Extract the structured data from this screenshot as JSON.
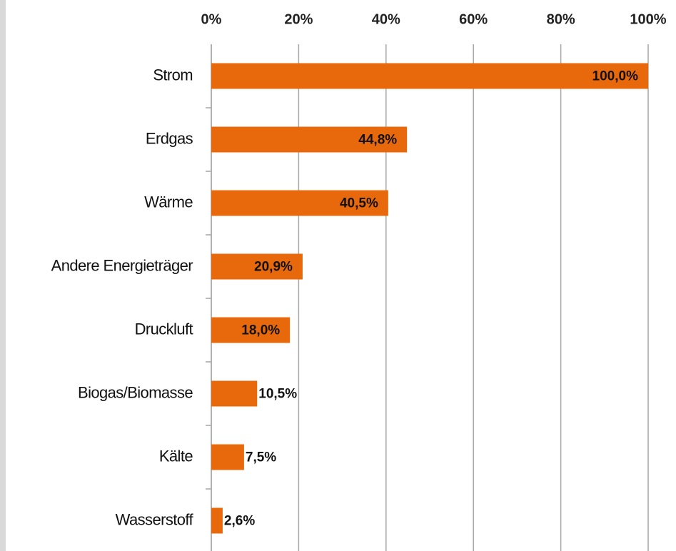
{
  "chart_data": {
    "type": "bar",
    "orientation": "horizontal",
    "color": "#e8690b",
    "categories": [
      "Strom",
      "Erdgas",
      "Wärme",
      "Andere Energieträger",
      "Druckluft",
      "Biogas/Biomasse",
      "Kälte",
      "Wasserstoff"
    ],
    "values": [
      100.0,
      44.8,
      40.5,
      20.9,
      18.0,
      10.5,
      7.5,
      2.6
    ],
    "value_labels": [
      "100,0%",
      "44,8%",
      "40,5%",
      "20,9%",
      "18,0%",
      "10,5%",
      "7,5%",
      "2,6%"
    ],
    "xlim": [
      0,
      100
    ],
    "xticks": [
      {
        "value": 0,
        "label": "0%"
      },
      {
        "value": 20,
        "label": "20%"
      },
      {
        "value": 40,
        "label": "40%"
      },
      {
        "value": 60,
        "label": "60%"
      },
      {
        "value": 80,
        "label": "80%"
      },
      {
        "value": 100,
        "label": "100%"
      }
    ],
    "grid": true
  }
}
